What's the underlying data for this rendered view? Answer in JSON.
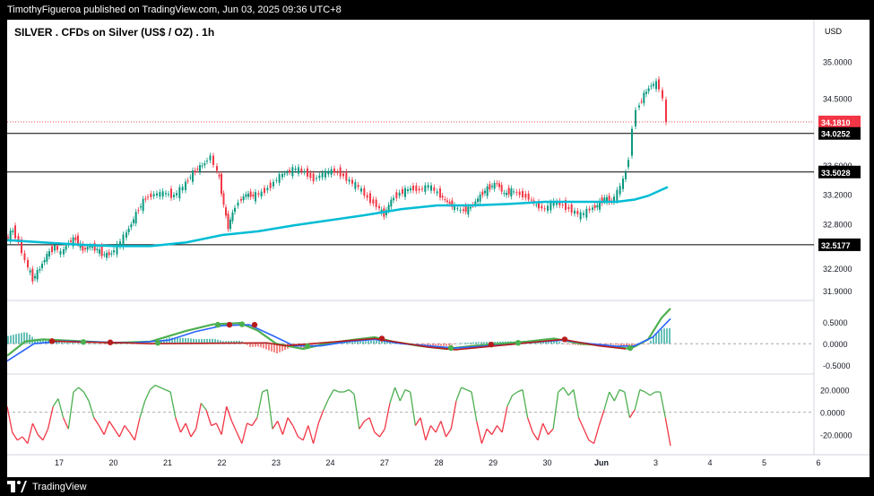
{
  "header": {
    "publish_line": "TimothyFigueroa published on TradingView.com, Jun 03, 2025 09:36 UTC+8"
  },
  "footer": {
    "brand": "TradingView"
  },
  "chart_data": [
    {
      "type": "candlestick",
      "title": "SILVER . CFDs on Silver (US$ / OZ) . 1h",
      "currency": "USD",
      "x_tick_labels": [
        "17",
        "20",
        "21",
        "22",
        "23",
        "24",
        "27",
        "28",
        "29",
        "30",
        "Jun",
        "3",
        "4",
        "5",
        "6"
      ],
      "y_tick_labels": [
        "35.0000",
        "34.5000",
        "33.6000",
        "33.2000",
        "32.8000",
        "32.2000",
        "31.9000"
      ],
      "ylim": [
        31.8,
        35.2
      ],
      "horizontal_levels": [
        34.0252,
        33.5028,
        32.5177
      ],
      "last_price": 34.181,
      "price_labels": [
        {
          "text": "34.1810",
          "color": "#f23645"
        },
        {
          "text": "34.0252",
          "color": "#000000"
        },
        {
          "text": "33.5028",
          "color": "#000000"
        },
        {
          "text": "32.5177",
          "color": "#000000"
        }
      ],
      "price_path": [
        [
          0,
          32.58
        ],
        [
          8,
          32.72
        ],
        [
          15,
          32.55
        ],
        [
          22,
          32.3
        ],
        [
          30,
          32.05
        ],
        [
          38,
          32.2
        ],
        [
          46,
          32.38
        ],
        [
          55,
          32.5
        ],
        [
          62,
          32.4
        ],
        [
          70,
          32.55
        ],
        [
          78,
          32.6
        ],
        [
          86,
          32.45
        ],
        [
          94,
          32.5
        ],
        [
          102,
          32.45
        ],
        [
          110,
          32.38
        ],
        [
          118,
          32.4
        ],
        [
          125,
          32.5
        ],
        [
          132,
          32.62
        ],
        [
          140,
          32.8
        ],
        [
          148,
          33.0
        ],
        [
          156,
          33.15
        ],
        [
          166,
          33.2
        ],
        [
          176,
          33.22
        ],
        [
          188,
          33.18
        ],
        [
          198,
          33.3
        ],
        [
          206,
          33.45
        ],
        [
          214,
          33.55
        ],
        [
          222,
          33.62
        ],
        [
          229,
          33.72
        ],
        [
          233,
          33.6
        ],
        [
          238,
          33.42
        ],
        [
          243,
          33.05
        ],
        [
          248,
          32.75
        ],
        [
          253,
          32.95
        ],
        [
          260,
          33.1
        ],
        [
          268,
          33.2
        ],
        [
          276,
          33.18
        ],
        [
          286,
          33.22
        ],
        [
          296,
          33.32
        ],
        [
          306,
          33.45
        ],
        [
          314,
          33.5
        ],
        [
          324,
          33.55
        ],
        [
          334,
          33.5
        ],
        [
          344,
          33.4
        ],
        [
          354,
          33.48
        ],
        [
          364,
          33.52
        ],
        [
          374,
          33.48
        ],
        [
          384,
          33.38
        ],
        [
          394,
          33.3
        ],
        [
          404,
          33.15
        ],
        [
          414,
          33.05
        ],
        [
          422,
          32.92
        ],
        [
          430,
          33.12
        ],
        [
          440,
          33.22
        ],
        [
          452,
          33.28
        ],
        [
          462,
          33.26
        ],
        [
          472,
          33.32
        ],
        [
          482,
          33.22
        ],
        [
          490,
          33.12
        ],
        [
          498,
          33.05
        ],
        [
          508,
          32.98
        ],
        [
          516,
          33.0
        ],
        [
          524,
          33.1
        ],
        [
          532,
          33.22
        ],
        [
          540,
          33.3
        ],
        [
          548,
          33.35
        ],
        [
          556,
          33.2
        ],
        [
          564,
          33.25
        ],
        [
          574,
          33.2
        ],
        [
          584,
          33.15
        ],
        [
          592,
          33.05
        ],
        [
          602,
          33.0
        ],
        [
          612,
          33.1
        ],
        [
          622,
          33.05
        ],
        [
          632,
          32.98
        ],
        [
          642,
          32.92
        ],
        [
          652,
          33.0
        ],
        [
          660,
          33.05
        ],
        [
          668,
          33.15
        ],
        [
          676,
          33.1
        ],
        [
          686,
          33.3
        ],
        [
          692,
          33.5
        ],
        [
          696,
          33.7
        ],
        [
          700,
          34.1
        ],
        [
          704,
          34.35
        ],
        [
          712,
          34.55
        ],
        [
          720,
          34.68
        ],
        [
          726,
          34.7
        ],
        [
          730,
          34.65
        ],
        [
          734,
          34.48
        ],
        [
          737,
          34.18
        ]
      ],
      "ma_path": [
        [
          0,
          32.58
        ],
        [
          40,
          32.55
        ],
        [
          80,
          32.52
        ],
        [
          120,
          32.5
        ],
        [
          160,
          32.5
        ],
        [
          200,
          32.55
        ],
        [
          240,
          32.65
        ],
        [
          280,
          32.7
        ],
        [
          320,
          32.78
        ],
        [
          360,
          32.85
        ],
        [
          400,
          32.92
        ],
        [
          440,
          33.0
        ],
        [
          480,
          33.05
        ],
        [
          520,
          33.05
        ],
        [
          560,
          33.07
        ],
        [
          600,
          33.1
        ],
        [
          640,
          33.1
        ],
        [
          680,
          33.1
        ],
        [
          700,
          33.13
        ],
        [
          715,
          33.18
        ],
        [
          737,
          33.3
        ]
      ]
    },
    {
      "type": "line",
      "name": "oscillator-macd",
      "y_tick_labels": [
        "0.5000",
        "0.0000",
        "-0.5000"
      ],
      "ylim": [
        -0.6,
        0.9
      ],
      "series": [
        {
          "color": "#4caf50",
          "points": [
            [
              0,
              -0.28
            ],
            [
              20,
              0.05
            ],
            [
              40,
              0.1
            ],
            [
              80,
              0.06
            ],
            [
              120,
              0.02
            ],
            [
              160,
              0.05
            ],
            [
              200,
              0.3
            ],
            [
              230,
              0.45
            ],
            [
              260,
              0.48
            ],
            [
              280,
              0.3
            ],
            [
              300,
              0.0
            ],
            [
              330,
              -0.12
            ],
            [
              360,
              0.02
            ],
            [
              390,
              0.1
            ],
            [
              410,
              0.15
            ],
            [
              430,
              0.05
            ],
            [
              460,
              -0.05
            ],
            [
              490,
              -0.12
            ],
            [
              520,
              -0.05
            ],
            [
              550,
              0.0
            ],
            [
              580,
              0.05
            ],
            [
              610,
              0.12
            ],
            [
              640,
              0.0
            ],
            [
              670,
              -0.05
            ],
            [
              695,
              -0.12
            ],
            [
              715,
              0.1
            ],
            [
              730,
              0.6
            ],
            [
              740,
              0.82
            ]
          ]
        },
        {
          "color": "#2962ff",
          "points": [
            [
              0,
              -0.4
            ],
            [
              30,
              0.0
            ],
            [
              60,
              0.06
            ],
            [
              100,
              0.04
            ],
            [
              140,
              0.02
            ],
            [
              180,
              0.08
            ],
            [
              210,
              0.28
            ],
            [
              240,
              0.42
            ],
            [
              270,
              0.44
            ],
            [
              295,
              0.2
            ],
            [
              320,
              -0.05
            ],
            [
              350,
              -0.05
            ],
            [
              380,
              0.05
            ],
            [
              410,
              0.1
            ],
            [
              440,
              0.0
            ],
            [
              470,
              -0.05
            ],
            [
              500,
              -0.1
            ],
            [
              530,
              -0.06
            ],
            [
              560,
              -0.02
            ],
            [
              590,
              0.04
            ],
            [
              620,
              0.08
            ],
            [
              650,
              0.0
            ],
            [
              680,
              -0.06
            ],
            [
              700,
              -0.05
            ],
            [
              720,
              0.15
            ],
            [
              740,
              0.58
            ]
          ]
        },
        {
          "color": "#b71c1c",
          "points": [
            [
              50,
              0.06
            ],
            [
              80,
              0.04
            ],
            [
              100,
              0.03
            ],
            [
              130,
              0.02
            ],
            [
              160,
              0.0
            ],
            [
              290,
              0.02
            ],
            [
              310,
              -0.05
            ],
            [
              410,
              0.12
            ],
            [
              440,
              0.02
            ],
            [
              470,
              -0.08
            ],
            [
              500,
              -0.14
            ],
            [
              530,
              -0.08
            ],
            [
              620,
              0.1
            ],
            [
              660,
              -0.05
            ],
            [
              690,
              -0.12
            ]
          ]
        }
      ]
    },
    {
      "type": "line",
      "name": "oscillator-lower",
      "y_tick_labels": [
        "20.0000",
        "0.0000",
        "-20.0000"
      ],
      "ylim": [
        -30,
        30
      ],
      "series": [
        {
          "color": "#f23645",
          "negative": true
        },
        {
          "color": "#4caf50",
          "positive": true
        }
      ],
      "values": [
        5,
        -18,
        -25,
        -22,
        -28,
        -10,
        -20,
        -25,
        -15,
        5,
        12,
        -5,
        -15,
        18,
        22,
        18,
        10,
        -5,
        -12,
        -20,
        -8,
        -15,
        -22,
        -12,
        -18,
        -25,
        -5,
        10,
        20,
        24,
        22,
        20,
        18,
        -5,
        -18,
        -10,
        -22,
        -15,
        8,
        2,
        -12,
        -10,
        -20,
        5,
        -8,
        -18,
        -28,
        -10,
        -12,
        -5,
        18,
        20,
        -15,
        -8,
        -20,
        -5,
        -12,
        -22,
        -25,
        -12,
        -28,
        -10,
        2,
        12,
        20,
        18,
        18,
        20,
        16,
        -15,
        -8,
        -5,
        -18,
        -22,
        -15,
        8,
        22,
        10,
        20,
        18,
        -12,
        -5,
        -25,
        -12,
        -18,
        -8,
        -22,
        -15,
        10,
        22,
        20,
        18,
        -8,
        -28,
        -15,
        -20,
        -12,
        -18,
        5,
        15,
        18,
        20,
        -5,
        -18,
        -25,
        -10,
        -20,
        -15,
        18,
        22,
        15,
        20,
        -5,
        -15,
        -25,
        -28,
        -12,
        2,
        18,
        10,
        20,
        18,
        -5,
        2,
        20,
        18,
        15,
        18,
        18,
        -5,
        -30
      ]
    }
  ]
}
